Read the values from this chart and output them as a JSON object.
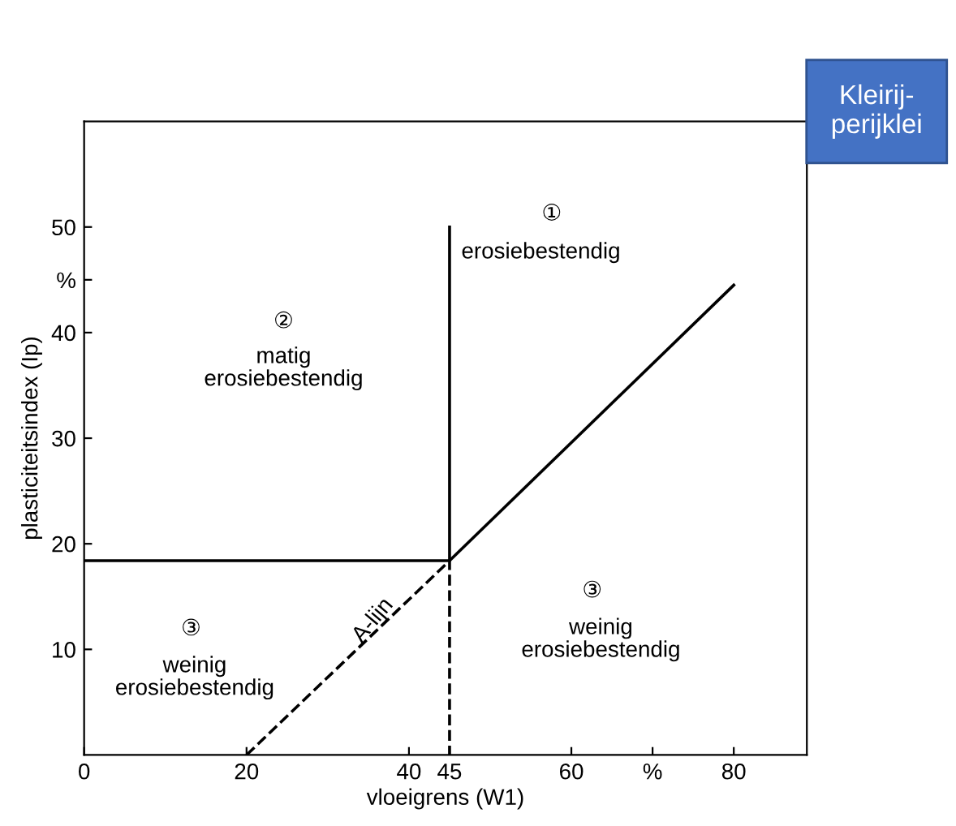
{
  "chart_data": {
    "type": "line",
    "xlabel": "vloeigrens (W1)",
    "ylabel": "plasticiteitsindex (Ip)",
    "xlim": [
      0,
      89
    ],
    "ylim": [
      0,
      60
    ],
    "xticks": [
      0,
      20,
      40,
      45,
      60,
      {
        "value": 70,
        "label": "%"
      },
      80
    ],
    "yticks": [
      10,
      20,
      30,
      40,
      {
        "value": 45,
        "label": "%"
      },
      50
    ],
    "grid": false,
    "marker": "none",
    "series": [
      {
        "x": [
          0,
          45,
          45
        ],
        "values": [
          18.4,
          18.4,
          50
        ],
        "color": "#000000",
        "line_style": "solid"
      },
      {
        "x": [
          20,
          45,
          45
        ],
        "values": [
          0,
          18.4,
          0
        ],
        "color": "#000000",
        "line_style": "dashed"
      },
      {
        "x": [
          45,
          80
        ],
        "values": [
          18.4,
          44.5
        ],
        "color": "#000000",
        "line_style": "solid"
      }
    ],
    "annotations": [
      "①",
      "erosiebestendig",
      "②",
      "matig\nerosiebestendig",
      "③",
      "weinig\nerosiebestendig",
      "③",
      "weinig\nerosiebestendig",
      "A-lijn",
      "Kleirij-\nperijklei"
    ]
  }
}
